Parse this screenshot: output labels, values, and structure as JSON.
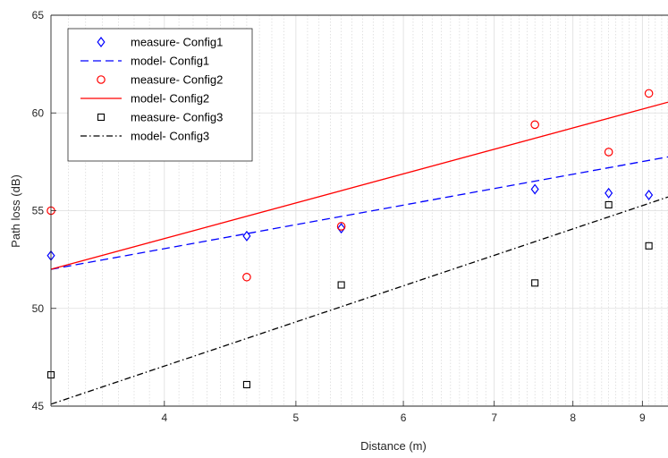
{
  "chart_data": {
    "type": "scatter",
    "xlabel": "Distance (m)",
    "ylabel": "Path loss (dB)",
    "x_scale": "log",
    "xlim": [
      3.3,
      9.4
    ],
    "ylim": [
      45,
      65
    ],
    "x_ticks": [
      4,
      5,
      6,
      7,
      8,
      9
    ],
    "y_ticks": [
      45,
      50,
      55,
      60,
      65
    ],
    "x_tick_labels": [
      "4",
      "5",
      "6",
      "7",
      "8",
      "9"
    ],
    "y_tick_labels": [
      "45",
      "50",
      "55",
      "60",
      "65"
    ],
    "grid": true,
    "legend_position": "top-left",
    "series": [
      {
        "name": "measure- Config1",
        "kind": "marker",
        "marker": "diamond",
        "color": "#0000ff",
        "x": [
          3.3,
          4.6,
          5.4,
          7.5,
          8.5,
          9.1
        ],
        "y": [
          52.7,
          53.7,
          54.1,
          56.1,
          55.9,
          55.8
        ]
      },
      {
        "name": "model- Config1",
        "kind": "line",
        "dash": "dashed",
        "color": "#0000ff",
        "x": [
          3.3,
          9.4
        ],
        "y": [
          52.0,
          57.75
        ]
      },
      {
        "name": "measure- Config2",
        "kind": "marker",
        "marker": "circle",
        "color": "#ff0000",
        "x": [
          3.3,
          4.6,
          5.4,
          7.5,
          8.5,
          9.1
        ],
        "y": [
          55.0,
          51.6,
          54.2,
          59.4,
          58.0,
          61.0
        ]
      },
      {
        "name": "model- Config2",
        "kind": "line",
        "dash": "solid",
        "color": "#ff0000",
        "x": [
          3.3,
          9.4
        ],
        "y": [
          52.0,
          60.55
        ]
      },
      {
        "name": "measure- Config3",
        "kind": "marker",
        "marker": "square",
        "color": "#000000",
        "x": [
          3.3,
          4.6,
          5.4,
          7.5,
          8.5,
          9.1
        ],
        "y": [
          46.6,
          46.1,
          51.2,
          51.3,
          55.3,
          53.2
        ]
      },
      {
        "name": "model- Config3",
        "kind": "line",
        "dash": "dashdot",
        "color": "#000000",
        "x": [
          3.3,
          9.4
        ],
        "y": [
          45.1,
          55.7
        ]
      }
    ]
  }
}
